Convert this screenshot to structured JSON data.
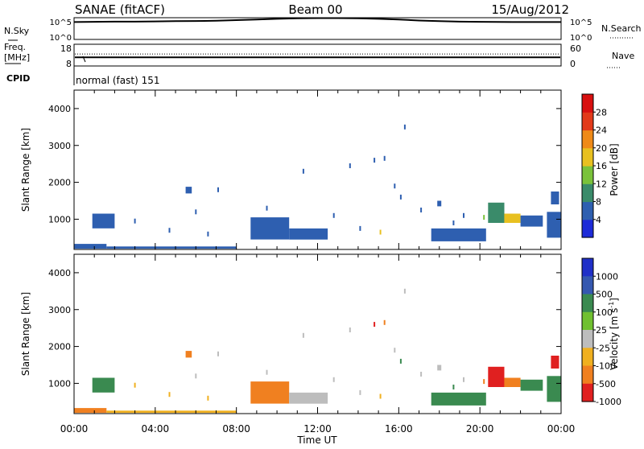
{
  "header": {
    "station": "SANAE (fitACF)",
    "beam": "Beam 00",
    "date": "15/Aug/2012"
  },
  "top_panels": {
    "nsky_label": "N.Sky",
    "nsearch_label": "N.Search",
    "freq_label_line1": "Freq.",
    "freq_label_line2": "[MHz]",
    "nave_label": "Nave",
    "cpid_label": "CPID",
    "cpid_value": "normal (fast) 151",
    "noise_ticks_left": [
      "10^5",
      "10^0"
    ],
    "noise_ticks_right": [
      "10^5",
      "10^0"
    ],
    "freq_ticks_left": [
      "18",
      "8"
    ],
    "nave_ticks_right": [
      "60",
      "0"
    ],
    "noise_profile": [
      [
        0.0,
        4.0
      ],
      [
        1.0,
        4.05
      ],
      [
        2.0,
        4.1
      ],
      [
        3.0,
        4.1
      ],
      [
        4.0,
        4.15
      ],
      [
        5.0,
        4.2
      ],
      [
        6.0,
        4.25
      ],
      [
        7.0,
        4.3
      ],
      [
        8.0,
        4.45
      ],
      [
        9.0,
        4.6
      ],
      [
        10.0,
        4.75
      ],
      [
        11.0,
        4.85
      ],
      [
        12.0,
        4.9
      ],
      [
        13.0,
        4.9
      ],
      [
        14.0,
        4.85
      ],
      [
        15.0,
        4.75
      ],
      [
        16.0,
        4.6
      ],
      [
        17.0,
        4.35
      ],
      [
        18.0,
        4.2
      ],
      [
        19.0,
        4.1
      ],
      [
        20.0,
        4.05
      ],
      [
        22.0,
        4.0
      ],
      [
        24.0,
        4.0
      ]
    ],
    "freq_mhz_value": 12.0,
    "nave_value": 33
  },
  "chart_data": [
    {
      "type": "heatmap",
      "panel": "power",
      "ylabel": "Slant Range [km]",
      "xlabel": "",
      "xlim": [
        0,
        24
      ],
      "ylim": [
        180,
        4500
      ],
      "yticks": [
        "1000",
        "2000",
        "3000",
        "4000"
      ],
      "colorbar_label": "Power [dB]",
      "colorbar_ticks": [
        "4",
        "8",
        "12",
        "16",
        "20",
        "24",
        "28"
      ],
      "colorbar_range": [
        0,
        30
      ],
      "colors": [
        "#1d2bd8",
        "#2e5fb0",
        "#3a8b6a",
        "#7ac23a",
        "#e8c020",
        "#ef8a18",
        "#e23a1a",
        "#d81010"
      ],
      "patches": [
        {
          "t0": 0.0,
          "t1": 1.6,
          "r0": 200,
          "r1": 330,
          "v": 6
        },
        {
          "t0": 1.6,
          "t1": 8.0,
          "r0": 200,
          "r1": 260,
          "v": 6
        },
        {
          "t0": 0.9,
          "t1": 2.0,
          "r0": 750,
          "r1": 1150,
          "v": 6
        },
        {
          "t0": 5.5,
          "t1": 5.8,
          "r0": 1700,
          "r1": 1880,
          "v": 6
        },
        {
          "t0": 8.7,
          "t1": 10.6,
          "r0": 450,
          "r1": 1050,
          "v": 6
        },
        {
          "t0": 10.6,
          "t1": 12.5,
          "r0": 450,
          "r1": 750,
          "v": 5
        },
        {
          "t0": 17.6,
          "t1": 20.3,
          "r0": 400,
          "r1": 750,
          "v": 6
        },
        {
          "t0": 17.9,
          "t1": 18.1,
          "r0": 1350,
          "r1": 1500,
          "v": 6
        },
        {
          "t0": 20.4,
          "t1": 21.2,
          "r0": 900,
          "r1": 1450,
          "v": 8
        },
        {
          "t0": 21.2,
          "t1": 22.0,
          "r0": 900,
          "r1": 1150,
          "v": 18
        },
        {
          "t0": 22.0,
          "t1": 23.1,
          "r0": 800,
          "r1": 1100,
          "v": 6
        },
        {
          "t0": 23.3,
          "t1": 24.0,
          "r0": 500,
          "r1": 1200,
          "v": 7
        },
        {
          "t0": 23.5,
          "t1": 23.9,
          "r0": 1400,
          "r1": 1750,
          "v": 6
        }
      ],
      "points": [
        [
          14.8,
          2600,
          6
        ],
        [
          15.3,
          2650,
          6
        ],
        [
          16.3,
          3500,
          6
        ],
        [
          11.3,
          2300,
          6
        ],
        [
          13.6,
          2450,
          6
        ],
        [
          7.1,
          1800,
          6
        ],
        [
          3.0,
          950,
          6
        ],
        [
          6.0,
          1200,
          6
        ],
        [
          9.5,
          1300,
          6
        ],
        [
          12.8,
          1100,
          6
        ],
        [
          15.8,
          1900,
          6
        ],
        [
          16.1,
          1600,
          6
        ],
        [
          19.2,
          1100,
          6
        ],
        [
          17.1,
          1250,
          6
        ],
        [
          4.7,
          700,
          6
        ],
        [
          6.6,
          600,
          6
        ],
        [
          14.1,
          750,
          6
        ],
        [
          15.1,
          650,
          16
        ],
        [
          18.7,
          900,
          6
        ],
        [
          20.2,
          1050,
          12
        ]
      ]
    },
    {
      "type": "heatmap",
      "panel": "velocity",
      "ylabel": "Slant Range [km]",
      "xlabel": "Time UT",
      "xlim": [
        0,
        24
      ],
      "ylim": [
        180,
        4500
      ],
      "xticks": [
        "00:00",
        "04:00",
        "08:00",
        "12:00",
        "16:00",
        "20:00",
        "00:00"
      ],
      "yticks": [
        "1000",
        "2000",
        "3000",
        "4000"
      ],
      "colorbar_label": "Velocity [m s^-1]",
      "colorbar_ticks": [
        "1000",
        "500",
        "100",
        "25",
        "-25",
        "-100",
        "-500",
        "-1000"
      ],
      "colorbar_range": [
        -1250,
        1250
      ],
      "colors": [
        "#2030c8",
        "#3558b0",
        "#3a8a50",
        "#70c030",
        "#bdbdbd",
        "#f0b020",
        "#f08020",
        "#e02020"
      ],
      "patches": [
        {
          "t0": 0.0,
          "t1": 1.6,
          "r0": 200,
          "r1": 330,
          "v": -300
        },
        {
          "t0": 1.6,
          "t1": 8.0,
          "r0": 200,
          "r1": 260,
          "v": -60
        },
        {
          "t0": 0.9,
          "t1": 2.0,
          "r0": 750,
          "r1": 1150,
          "v": 120
        },
        {
          "t0": 5.5,
          "t1": 5.8,
          "r0": 1700,
          "r1": 1880,
          "v": -300
        },
        {
          "t0": 8.7,
          "t1": 10.6,
          "r0": 450,
          "r1": 1050,
          "v": -70
        },
        {
          "t0": 10.6,
          "t1": 12.5,
          "r0": 450,
          "r1": 750,
          "v": 0
        },
        {
          "t0": 17.6,
          "t1": 20.3,
          "r0": 400,
          "r1": 750,
          "v": 60
        },
        {
          "t0": 17.9,
          "t1": 18.1,
          "r0": 1350,
          "r1": 1500,
          "v": 0
        },
        {
          "t0": 20.4,
          "t1": 21.2,
          "r0": 900,
          "r1": 1450,
          "v": -600
        },
        {
          "t0": 21.2,
          "t1": 22.0,
          "r0": 900,
          "r1": 1150,
          "v": -300
        },
        {
          "t0": 22.0,
          "t1": 23.1,
          "r0": 800,
          "r1": 1100,
          "v": 60
        },
        {
          "t0": 23.3,
          "t1": 24.0,
          "r0": 500,
          "r1": 1200,
          "v": 150
        },
        {
          "t0": 23.5,
          "t1": 23.9,
          "r0": 1400,
          "r1": 1750,
          "v": -600
        }
      ],
      "points": [
        [
          14.8,
          2600,
          -600
        ],
        [
          15.3,
          2650,
          -300
        ],
        [
          16.3,
          3500,
          0
        ],
        [
          11.3,
          2300,
          0
        ],
        [
          13.6,
          2450,
          0
        ],
        [
          7.1,
          1800,
          0
        ],
        [
          3.0,
          950,
          -60
        ],
        [
          6.0,
          1200,
          0
        ],
        [
          9.5,
          1300,
          0
        ],
        [
          12.8,
          1100,
          0
        ],
        [
          15.8,
          1900,
          0
        ],
        [
          16.1,
          1600,
          120
        ],
        [
          19.2,
          1100,
          0
        ],
        [
          17.1,
          1250,
          0
        ],
        [
          4.7,
          700,
          -60
        ],
        [
          6.6,
          600,
          -60
        ],
        [
          14.1,
          750,
          0
        ],
        [
          15.1,
          650,
          -60
        ],
        [
          18.7,
          900,
          60
        ],
        [
          20.2,
          1050,
          -300
        ]
      ]
    }
  ]
}
